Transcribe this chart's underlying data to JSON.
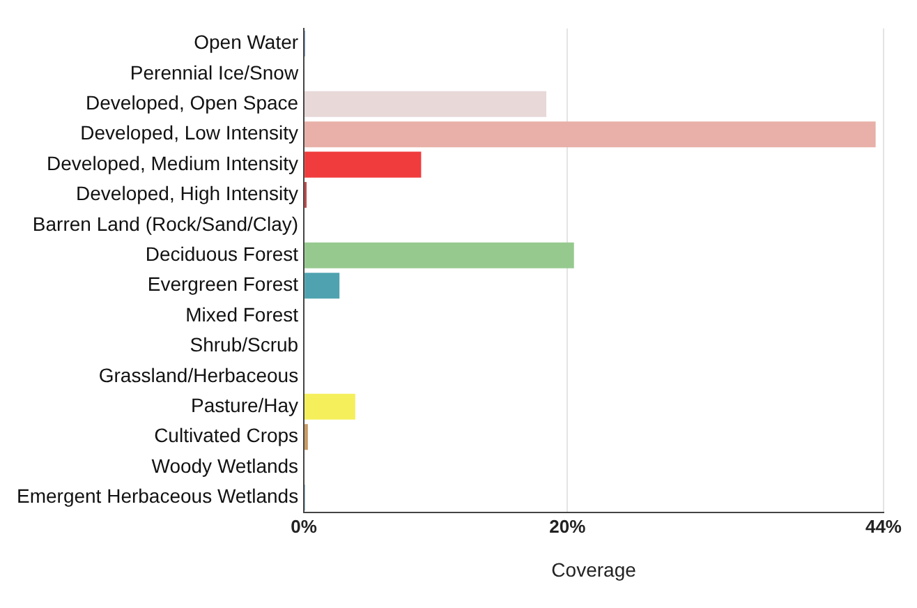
{
  "chart_data": {
    "type": "bar",
    "orientation": "horizontal",
    "xlabel": "Coverage",
    "categories": [
      "Open Water",
      "Perennial Ice/Snow",
      "Developed, Open Space",
      "Developed, Low Intensity",
      "Developed, Medium Intensity",
      "Developed, High Intensity",
      "Barren Land (Rock/Sand/Clay)",
      "Deciduous Forest",
      "Evergreen Forest",
      "Mixed Forest",
      "Shrub/Scrub",
      "Grassland/Herbaceous",
      "Pasture/Hay",
      "Cultivated Crops",
      "Woody Wetlands",
      "Emergent Herbaceous Wetlands"
    ],
    "values": [
      0.1,
      0,
      18.4,
      43.4,
      8.9,
      0.2,
      0,
      20.5,
      2.7,
      0,
      0,
      0,
      3.9,
      0.3,
      0,
      0.1
    ],
    "colors": [
      "#7a9cc6",
      "#dde7fa",
      "#e8d8d8",
      "#e8b0a8",
      "#f03c3c",
      "#c04040",
      "#c8c2b8",
      "#96c98e",
      "#4fa3b0",
      "#c8d4a8",
      "#d8cc9c",
      "#e8e8d4",
      "#f5ef5c",
      "#c89a60",
      "#c8e2f0",
      "#8cb8cc"
    ],
    "xlim": [
      0,
      44
    ],
    "xticks": [
      {
        "value": 0,
        "label": "0%"
      },
      {
        "value": 20,
        "label": "20%"
      },
      {
        "value": 44,
        "label": "44%"
      }
    ],
    "grid": "x"
  }
}
